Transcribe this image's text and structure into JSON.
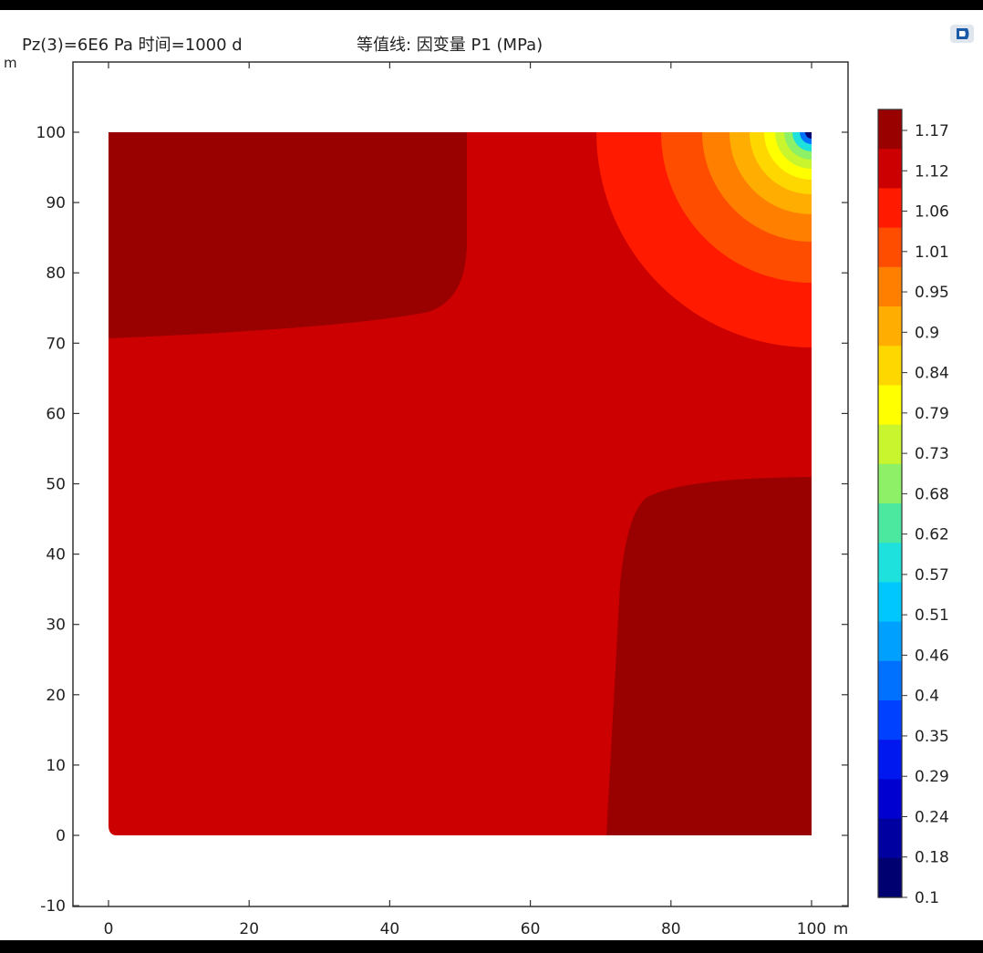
{
  "header": {
    "left_text": "Pz(3)=6E6 Pa 时间=1000 d",
    "right_text": "等值线: 因变量 P1 (MPa)"
  },
  "chart_data": {
    "type": "contour",
    "x_unit": "m",
    "y_unit": "m",
    "xlim": [
      -5,
      105
    ],
    "ylim": [
      -10,
      110
    ],
    "x_ticks": [
      0,
      20,
      40,
      60,
      80,
      100
    ],
    "y_ticks": [
      -10,
      0,
      10,
      20,
      30,
      40,
      50,
      60,
      70,
      80,
      90,
      100
    ],
    "domain": {
      "x": [
        0,
        100
      ],
      "y": [
        0,
        100
      ]
    },
    "colorbar": {
      "title": "P1 (MPa)",
      "min": 0.1,
      "max": 1.2,
      "tick_values": [
        "1.17",
        "1.12",
        "1.06",
        "1.01",
        "0.95",
        "0.9",
        "0.84",
        "0.79",
        "0.73",
        "0.68",
        "0.62",
        "0.57",
        "0.51",
        "0.46",
        "0.4",
        "0.35",
        "0.29",
        "0.24",
        "0.18",
        "0.1"
      ],
      "colors": [
        "#990000",
        "#cc0000",
        "#ff1a00",
        "#ff4d00",
        "#ff8000",
        "#ffad00",
        "#ffd700",
        "#ffff00",
        "#c8f52e",
        "#8ef066",
        "#4ce8a0",
        "#1ee0dc",
        "#00c8ff",
        "#00a0ff",
        "#0070ff",
        "#0040ff",
        "#0018f0",
        "#0000d0",
        "#0000a0",
        "#000070"
      ]
    },
    "regions": [
      {
        "id": "upper-left-high",
        "level": 1.17,
        "color": "#990000"
      },
      {
        "id": "lower-right-high",
        "level": 1.17,
        "color": "#990000"
      },
      {
        "id": "main-band",
        "level": 1.12,
        "color": "#cc0000"
      },
      {
        "id": "drawdown-corner",
        "well_at": [
          100,
          100
        ],
        "levels": [
          1.06,
          1.01,
          0.95,
          0.9,
          0.84,
          0.79,
          0.73,
          0.68,
          0.1
        ]
      }
    ]
  }
}
